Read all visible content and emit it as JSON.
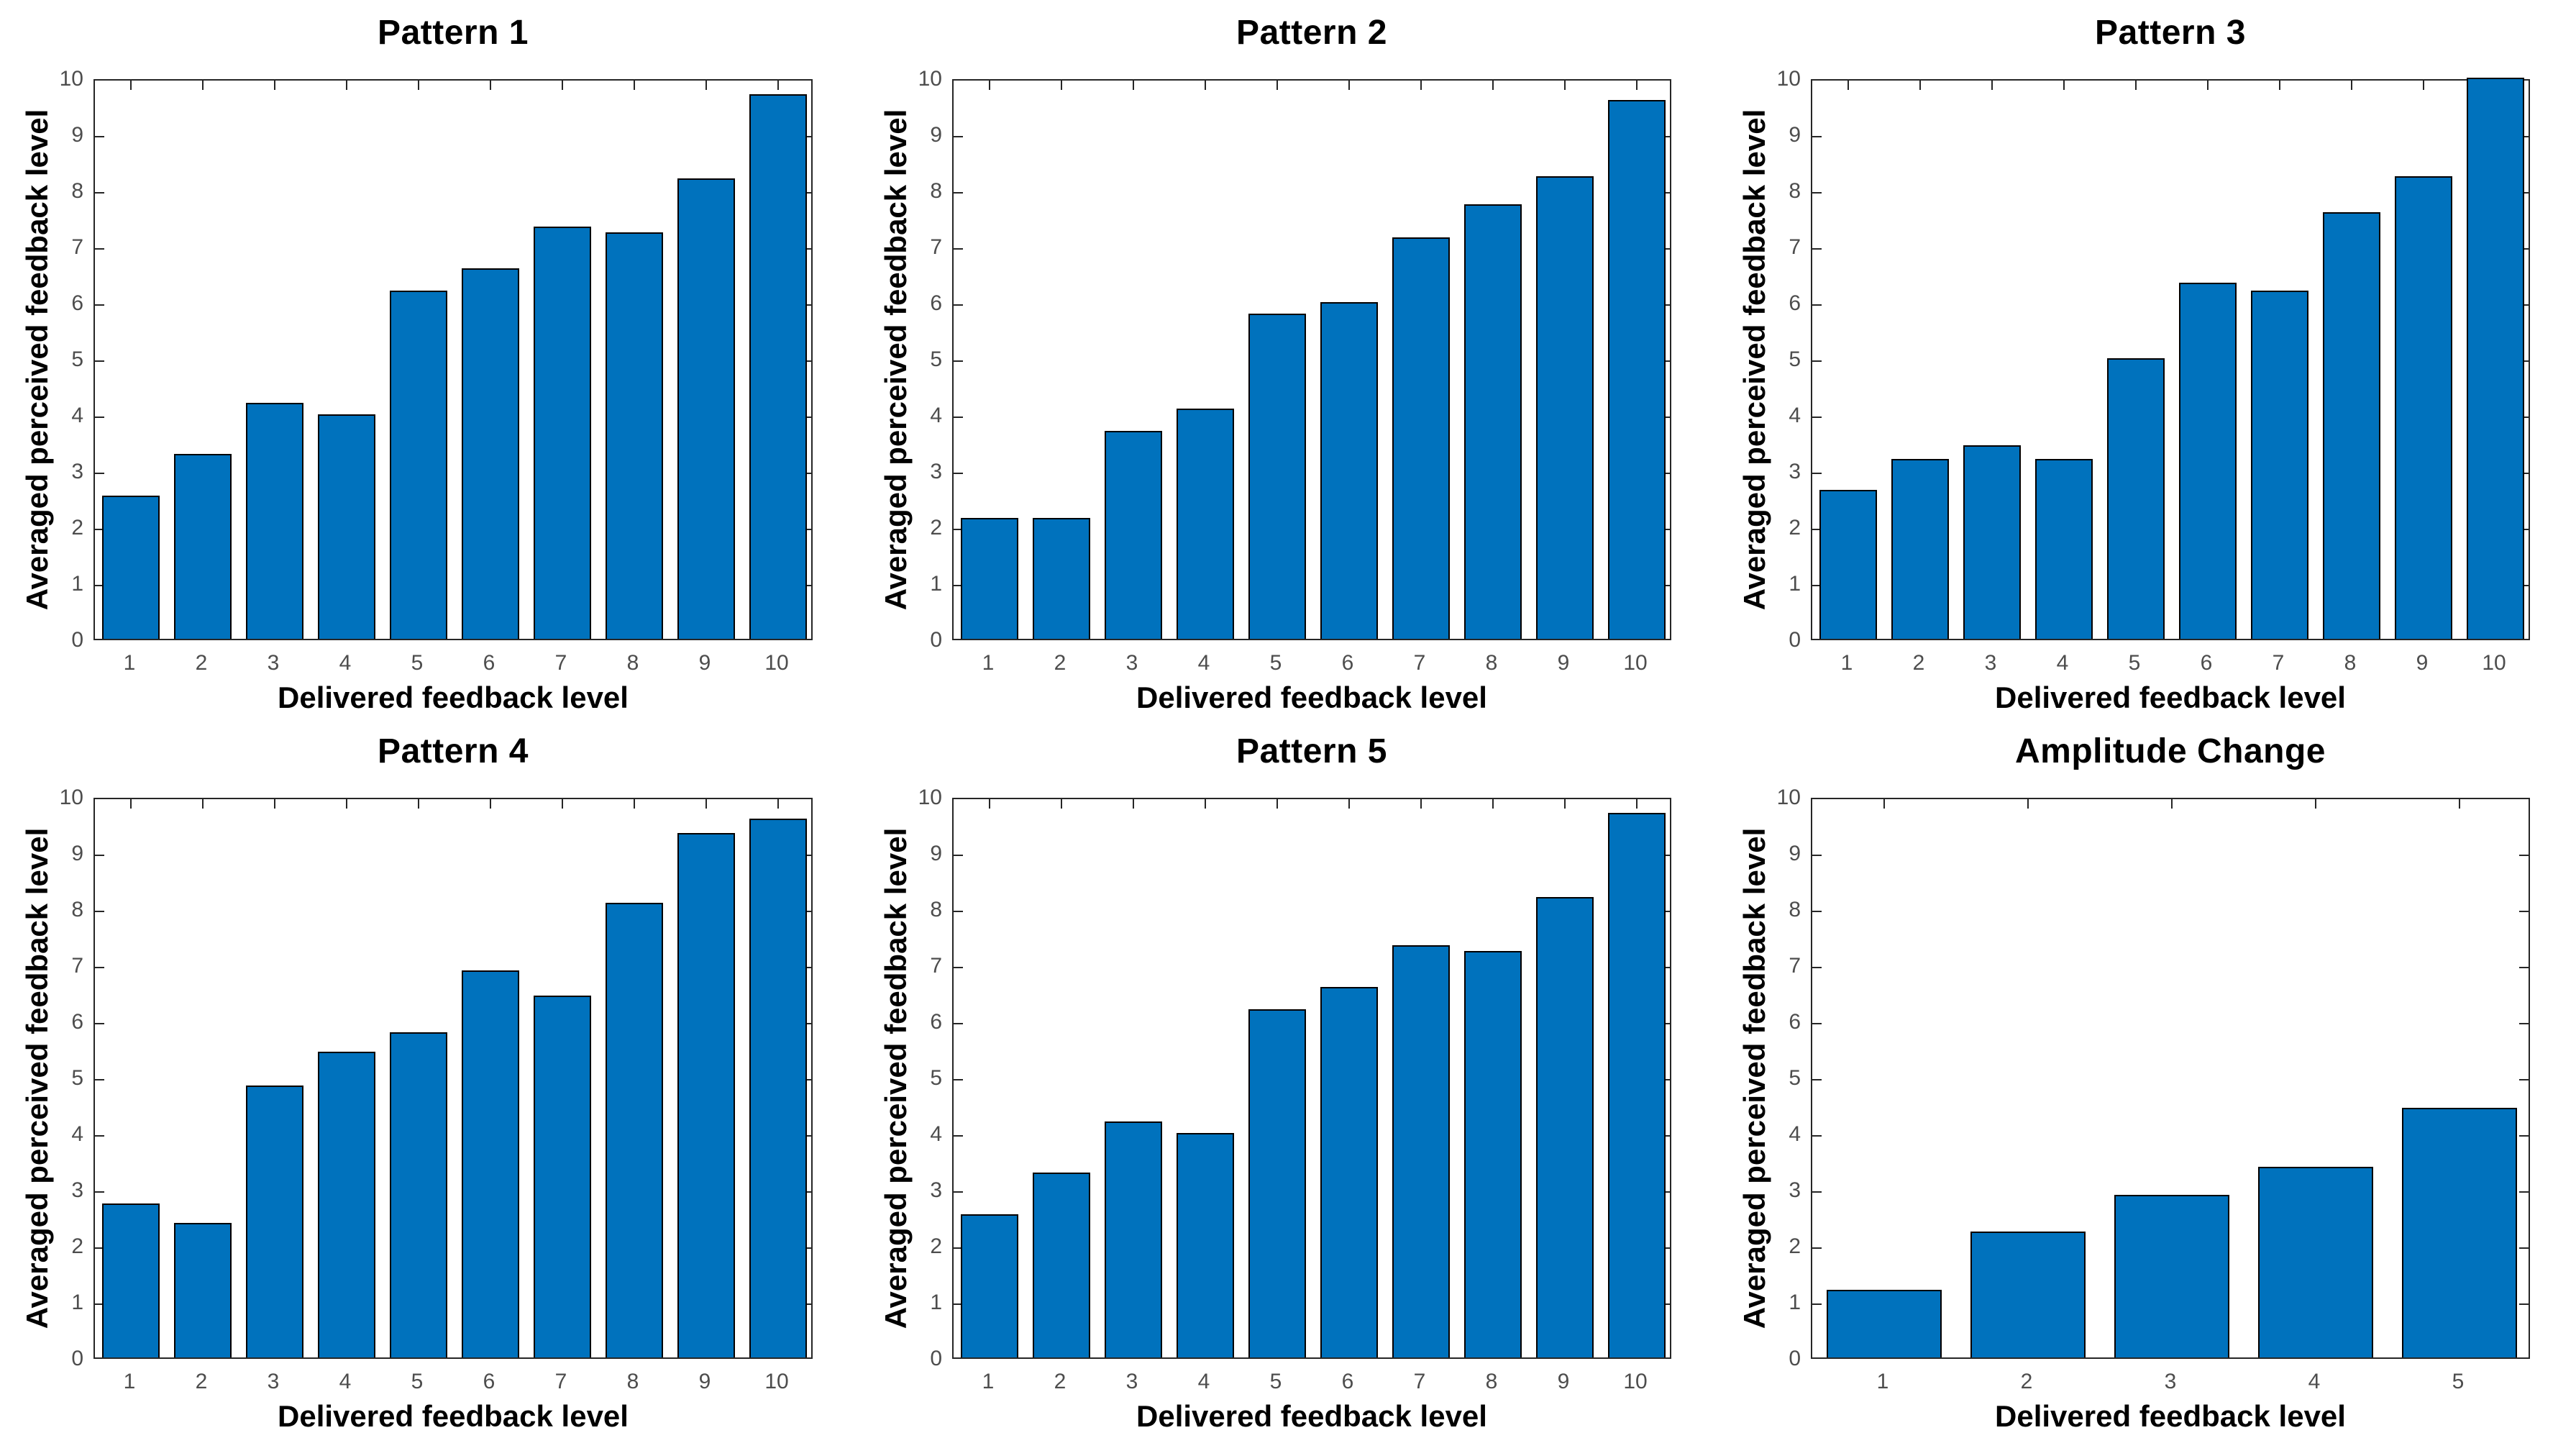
{
  "page": {
    "background": "#FFFFFF"
  },
  "colors": {
    "bar_fill": "#0072BD",
    "bar_edge": "#000000",
    "axis": "#262626",
    "tick_label": "#4D4D4D",
    "title_text": "#000000",
    "axis_label_text": "#000000"
  },
  "chart_data": [
    {
      "type": "bar",
      "title": "Pattern 1",
      "xlabel": "Delivered feedback level",
      "ylabel": "Averaged perceived feedback level",
      "categories": [
        "1",
        "2",
        "3",
        "4",
        "5",
        "6",
        "7",
        "8",
        "9",
        "10"
      ],
      "values": [
        2.55,
        3.3,
        4.2,
        4.0,
        6.2,
        6.6,
        7.35,
        7.25,
        8.2,
        9.7
      ],
      "ylim": [
        0,
        10
      ],
      "yticks": [
        0,
        1,
        2,
        3,
        4,
        5,
        6,
        7,
        8,
        9,
        10
      ],
      "grid": false,
      "legend": "none",
      "bar_width_fraction": 0.8
    },
    {
      "type": "bar",
      "title": "Pattern 2",
      "xlabel": "Delivered feedback level",
      "ylabel": "Averaged perceived feedback level",
      "categories": [
        "1",
        "2",
        "3",
        "4",
        "5",
        "6",
        "7",
        "8",
        "9",
        "10"
      ],
      "values": [
        2.15,
        2.15,
        3.7,
        4.1,
        5.8,
        6.0,
        7.15,
        7.75,
        8.25,
        9.6
      ],
      "ylim": [
        0,
        10
      ],
      "yticks": [
        0,
        1,
        2,
        3,
        4,
        5,
        6,
        7,
        8,
        9,
        10
      ],
      "grid": false,
      "legend": "none",
      "bar_width_fraction": 0.8
    },
    {
      "type": "bar",
      "title": "Pattern 3",
      "xlabel": "Delivered feedback level",
      "ylabel": "Averaged perceived feedback level",
      "categories": [
        "1",
        "2",
        "3",
        "4",
        "5",
        "6",
        "7",
        "8",
        "9",
        "10"
      ],
      "values": [
        2.65,
        3.2,
        3.45,
        3.2,
        5.0,
        6.35,
        6.2,
        7.6,
        8.25,
        10.0
      ],
      "ylim": [
        0,
        10
      ],
      "yticks": [
        0,
        1,
        2,
        3,
        4,
        5,
        6,
        7,
        8,
        9,
        10
      ],
      "grid": false,
      "legend": "none",
      "bar_width_fraction": 0.8
    },
    {
      "type": "bar",
      "title": "Pattern 4",
      "xlabel": "Delivered feedback level",
      "ylabel": "Averaged perceived feedback level",
      "categories": [
        "1",
        "2",
        "3",
        "4",
        "5",
        "6",
        "7",
        "8",
        "9",
        "10"
      ],
      "values": [
        2.75,
        2.4,
        4.85,
        5.45,
        5.8,
        6.9,
        6.45,
        8.1,
        9.35,
        9.6
      ],
      "ylim": [
        0,
        10
      ],
      "yticks": [
        0,
        1,
        2,
        3,
        4,
        5,
        6,
        7,
        8,
        9,
        10
      ],
      "grid": false,
      "legend": "none",
      "bar_width_fraction": 0.8
    },
    {
      "type": "bar",
      "title": "Pattern 5",
      "xlabel": "Delivered feedback level",
      "ylabel": "Averaged perceived feedback level",
      "categories": [
        "1",
        "2",
        "3",
        "4",
        "5",
        "6",
        "7",
        "8",
        "9",
        "10"
      ],
      "values": [
        2.55,
        3.3,
        4.2,
        4.0,
        6.2,
        6.6,
        7.35,
        7.25,
        8.2,
        9.7
      ],
      "ylim": [
        0,
        10
      ],
      "yticks": [
        0,
        1,
        2,
        3,
        4,
        5,
        6,
        7,
        8,
        9,
        10
      ],
      "grid": false,
      "legend": "none",
      "bar_width_fraction": 0.8
    },
    {
      "type": "bar",
      "title": "Amplitude Change",
      "xlabel": "Delivered feedback level",
      "ylabel": "Averaged perceived feedback level",
      "categories": [
        "1",
        "2",
        "3",
        "4",
        "5"
      ],
      "values": [
        1.2,
        2.25,
        2.9,
        3.4,
        4.45
      ],
      "ylim": [
        0,
        10
      ],
      "yticks": [
        0,
        1,
        2,
        3,
        4,
        5,
        6,
        7,
        8,
        9,
        10
      ],
      "grid": false,
      "legend": "none",
      "bar_width_fraction": 0.8
    }
  ]
}
